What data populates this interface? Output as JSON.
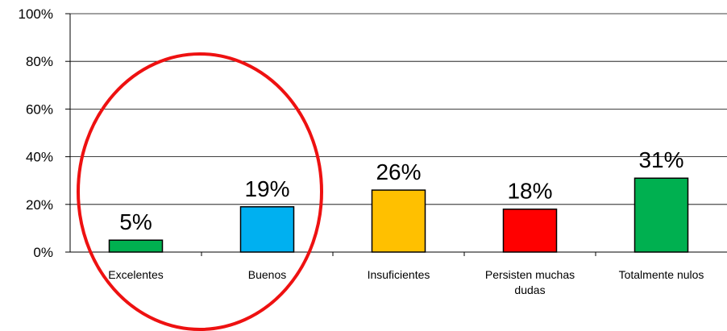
{
  "chart_data": {
    "type": "bar",
    "categories": [
      "Excelentes",
      "Buenos",
      "Insuficientes",
      "Persisten muchas dudas",
      "Totalmente nulos"
    ],
    "values": [
      5,
      19,
      26,
      18,
      31
    ],
    "value_labels": [
      "5%",
      "19%",
      "26%",
      "18%",
      "31%"
    ],
    "colors": [
      "#00b050",
      "#00b0f0",
      "#ffc000",
      "#ff0000",
      "#00b050"
    ],
    "ylim": [
      0,
      100
    ],
    "yticks": [
      {
        "value": 0,
        "label": "0%"
      },
      {
        "value": 20,
        "label": "20%"
      },
      {
        "value": 40,
        "label": "40%"
      },
      {
        "value": 60,
        "label": "60%"
      },
      {
        "value": 80,
        "label": "80%"
      },
      {
        "value": 100,
        "label": "100%"
      }
    ],
    "grid": true
  }
}
